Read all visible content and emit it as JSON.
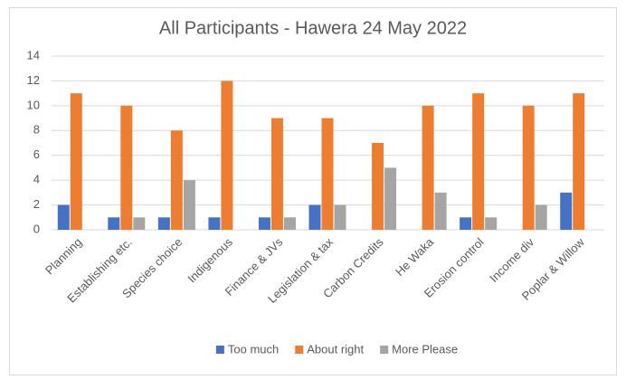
{
  "chart_data": {
    "type": "bar",
    "title": "All Participants - Hawera 24 May 2022",
    "categories": [
      "Planning",
      "Establishing etc.",
      "Species choice",
      "Indigenous",
      "Finance & JVs",
      "Legislation & tax",
      "Carbon Credits",
      "He Waka",
      "Erosion control",
      "Income div",
      "Poplar & Willow"
    ],
    "series": [
      {
        "name": "Too much",
        "color": "#4472c4",
        "values": [
          2,
          1,
          1,
          1,
          1,
          2,
          0,
          0,
          1,
          0,
          3
        ]
      },
      {
        "name": "About right",
        "color": "#ed7d31",
        "values": [
          11,
          10,
          8,
          12,
          9,
          9,
          7,
          10,
          11,
          10,
          11
        ]
      },
      {
        "name": "More Please",
        "color": "#a5a5a5",
        "values": [
          0,
          1,
          4,
          0,
          1,
          2,
          5,
          3,
          1,
          2,
          0
        ]
      }
    ],
    "ylim": [
      0,
      14
    ],
    "yticks": [
      0,
      2,
      4,
      6,
      8,
      10,
      12,
      14
    ],
    "grid": true,
    "legend": "bottom"
  }
}
